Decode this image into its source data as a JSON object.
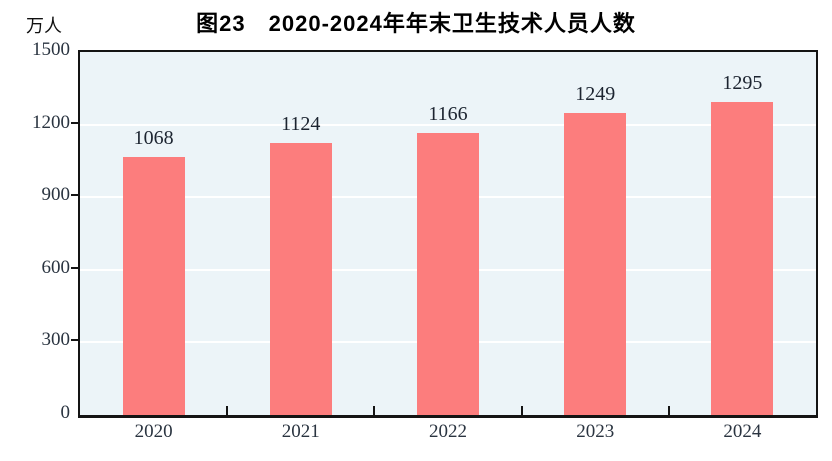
{
  "header": {
    "title": "图23　2020-2024年年末卫生技术人员人数",
    "unit_label": "万人"
  },
  "colors": {
    "bar": "#fc7d7d",
    "plot_bg": "#ecf4f8",
    "grid": "#ffffff",
    "axis": "#141414"
  },
  "chart_data": {
    "type": "bar",
    "title": "图23　2020-2024年年末卫生技术人员人数",
    "categories": [
      "2020",
      "2021",
      "2022",
      "2023",
      "2024"
    ],
    "values": [
      1068,
      1124,
      1166,
      1249,
      1295
    ],
    "xlabel": "",
    "ylabel": "万人",
    "ylim": [
      0,
      1500
    ],
    "yticks": [
      0,
      300,
      600,
      900,
      1200,
      1500
    ],
    "grid": true,
    "gridline_values": [
      300,
      600,
      900,
      1200
    ],
    "legend": "none",
    "data_labels": true
  }
}
